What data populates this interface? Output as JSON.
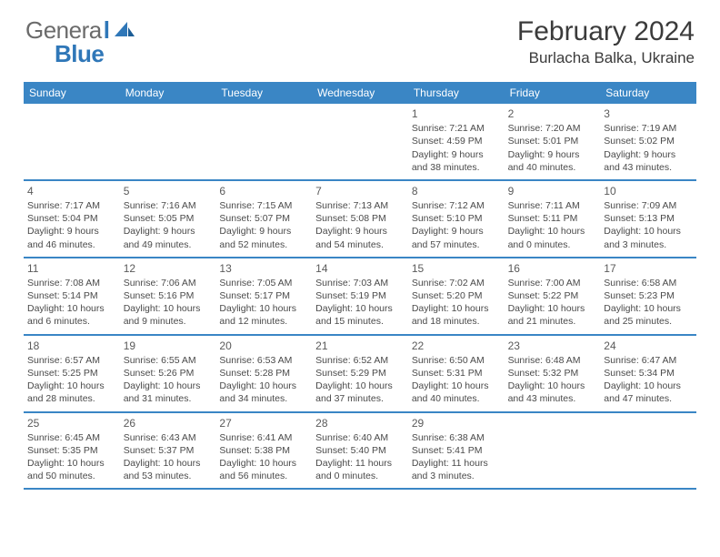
{
  "brand": {
    "general": "Genera",
    "l": "l",
    "blue": "Blue"
  },
  "title": "February 2024",
  "location": "Burlacha Balka, Ukraine",
  "colors": {
    "header_bg": "#3a86c5",
    "header_text": "#ffffff",
    "accent": "#2f77b8",
    "text": "#4a4a4a",
    "title_text": "#3b3b3b",
    "logo_gray": "#6b6b6b"
  },
  "day_names": [
    "Sunday",
    "Monday",
    "Tuesday",
    "Wednesday",
    "Thursday",
    "Friday",
    "Saturday"
  ],
  "weeks": [
    [
      null,
      null,
      null,
      null,
      {
        "n": "1",
        "sr": "Sunrise: 7:21 AM",
        "ss": "Sunset: 4:59 PM",
        "d1": "Daylight: 9 hours",
        "d2": "and 38 minutes."
      },
      {
        "n": "2",
        "sr": "Sunrise: 7:20 AM",
        "ss": "Sunset: 5:01 PM",
        "d1": "Daylight: 9 hours",
        "d2": "and 40 minutes."
      },
      {
        "n": "3",
        "sr": "Sunrise: 7:19 AM",
        "ss": "Sunset: 5:02 PM",
        "d1": "Daylight: 9 hours",
        "d2": "and 43 minutes."
      }
    ],
    [
      {
        "n": "4",
        "sr": "Sunrise: 7:17 AM",
        "ss": "Sunset: 5:04 PM",
        "d1": "Daylight: 9 hours",
        "d2": "and 46 minutes."
      },
      {
        "n": "5",
        "sr": "Sunrise: 7:16 AM",
        "ss": "Sunset: 5:05 PM",
        "d1": "Daylight: 9 hours",
        "d2": "and 49 minutes."
      },
      {
        "n": "6",
        "sr": "Sunrise: 7:15 AM",
        "ss": "Sunset: 5:07 PM",
        "d1": "Daylight: 9 hours",
        "d2": "and 52 minutes."
      },
      {
        "n": "7",
        "sr": "Sunrise: 7:13 AM",
        "ss": "Sunset: 5:08 PM",
        "d1": "Daylight: 9 hours",
        "d2": "and 54 minutes."
      },
      {
        "n": "8",
        "sr": "Sunrise: 7:12 AM",
        "ss": "Sunset: 5:10 PM",
        "d1": "Daylight: 9 hours",
        "d2": "and 57 minutes."
      },
      {
        "n": "9",
        "sr": "Sunrise: 7:11 AM",
        "ss": "Sunset: 5:11 PM",
        "d1": "Daylight: 10 hours",
        "d2": "and 0 minutes."
      },
      {
        "n": "10",
        "sr": "Sunrise: 7:09 AM",
        "ss": "Sunset: 5:13 PM",
        "d1": "Daylight: 10 hours",
        "d2": "and 3 minutes."
      }
    ],
    [
      {
        "n": "11",
        "sr": "Sunrise: 7:08 AM",
        "ss": "Sunset: 5:14 PM",
        "d1": "Daylight: 10 hours",
        "d2": "and 6 minutes."
      },
      {
        "n": "12",
        "sr": "Sunrise: 7:06 AM",
        "ss": "Sunset: 5:16 PM",
        "d1": "Daylight: 10 hours",
        "d2": "and 9 minutes."
      },
      {
        "n": "13",
        "sr": "Sunrise: 7:05 AM",
        "ss": "Sunset: 5:17 PM",
        "d1": "Daylight: 10 hours",
        "d2": "and 12 minutes."
      },
      {
        "n": "14",
        "sr": "Sunrise: 7:03 AM",
        "ss": "Sunset: 5:19 PM",
        "d1": "Daylight: 10 hours",
        "d2": "and 15 minutes."
      },
      {
        "n": "15",
        "sr": "Sunrise: 7:02 AM",
        "ss": "Sunset: 5:20 PM",
        "d1": "Daylight: 10 hours",
        "d2": "and 18 minutes."
      },
      {
        "n": "16",
        "sr": "Sunrise: 7:00 AM",
        "ss": "Sunset: 5:22 PM",
        "d1": "Daylight: 10 hours",
        "d2": "and 21 minutes."
      },
      {
        "n": "17",
        "sr": "Sunrise: 6:58 AM",
        "ss": "Sunset: 5:23 PM",
        "d1": "Daylight: 10 hours",
        "d2": "and 25 minutes."
      }
    ],
    [
      {
        "n": "18",
        "sr": "Sunrise: 6:57 AM",
        "ss": "Sunset: 5:25 PM",
        "d1": "Daylight: 10 hours",
        "d2": "and 28 minutes."
      },
      {
        "n": "19",
        "sr": "Sunrise: 6:55 AM",
        "ss": "Sunset: 5:26 PM",
        "d1": "Daylight: 10 hours",
        "d2": "and 31 minutes."
      },
      {
        "n": "20",
        "sr": "Sunrise: 6:53 AM",
        "ss": "Sunset: 5:28 PM",
        "d1": "Daylight: 10 hours",
        "d2": "and 34 minutes."
      },
      {
        "n": "21",
        "sr": "Sunrise: 6:52 AM",
        "ss": "Sunset: 5:29 PM",
        "d1": "Daylight: 10 hours",
        "d2": "and 37 minutes."
      },
      {
        "n": "22",
        "sr": "Sunrise: 6:50 AM",
        "ss": "Sunset: 5:31 PM",
        "d1": "Daylight: 10 hours",
        "d2": "and 40 minutes."
      },
      {
        "n": "23",
        "sr": "Sunrise: 6:48 AM",
        "ss": "Sunset: 5:32 PM",
        "d1": "Daylight: 10 hours",
        "d2": "and 43 minutes."
      },
      {
        "n": "24",
        "sr": "Sunrise: 6:47 AM",
        "ss": "Sunset: 5:34 PM",
        "d1": "Daylight: 10 hours",
        "d2": "and 47 minutes."
      }
    ],
    [
      {
        "n": "25",
        "sr": "Sunrise: 6:45 AM",
        "ss": "Sunset: 5:35 PM",
        "d1": "Daylight: 10 hours",
        "d2": "and 50 minutes."
      },
      {
        "n": "26",
        "sr": "Sunrise: 6:43 AM",
        "ss": "Sunset: 5:37 PM",
        "d1": "Daylight: 10 hours",
        "d2": "and 53 minutes."
      },
      {
        "n": "27",
        "sr": "Sunrise: 6:41 AM",
        "ss": "Sunset: 5:38 PM",
        "d1": "Daylight: 10 hours",
        "d2": "and 56 minutes."
      },
      {
        "n": "28",
        "sr": "Sunrise: 6:40 AM",
        "ss": "Sunset: 5:40 PM",
        "d1": "Daylight: 11 hours",
        "d2": "and 0 minutes."
      },
      {
        "n": "29",
        "sr": "Sunrise: 6:38 AM",
        "ss": "Sunset: 5:41 PM",
        "d1": "Daylight: 11 hours",
        "d2": "and 3 minutes."
      },
      null,
      null
    ]
  ]
}
